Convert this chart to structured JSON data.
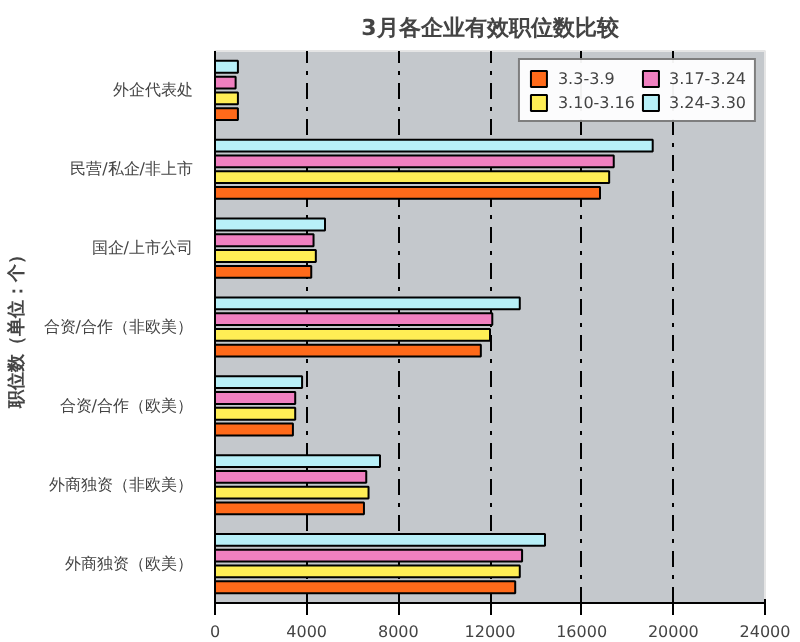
{
  "chart_data": {
    "type": "bar",
    "orientation": "horizontal",
    "title": "3月各企业有效职位数比较",
    "ylabel": "职位数（单位：个）",
    "categories": [
      "外企代表处",
      "民营/私企/非上市",
      "国企/上市公司",
      "合资/合作（非欧美）",
      "合资/合作（欧美）",
      "外商独资（非欧美）",
      "外商独资（欧美）"
    ],
    "series": [
      {
        "name": "3.3-3.9",
        "color": "#ff6a1a",
        "values": [
          1000,
          16800,
          4200,
          11600,
          3400,
          6500,
          13100
        ]
      },
      {
        "name": "3.10-3.16",
        "color": "#ffee55",
        "values": [
          1000,
          17200,
          4400,
          12000,
          3500,
          6700,
          13300
        ]
      },
      {
        "name": "3.17-3.24",
        "color": "#f080c0",
        "values": [
          900,
          17400,
          4300,
          12100,
          3500,
          6600,
          13400
        ]
      },
      {
        "name": "3.24-3.30",
        "color": "#b8f0f8",
        "values": [
          1000,
          19100,
          4800,
          13300,
          3800,
          7200,
          14400
        ]
      }
    ],
    "xlim": [
      0,
      24000
    ],
    "xticks": [
      0,
      4000,
      8000,
      12000,
      16000,
      20000,
      24000
    ],
    "grid": "x",
    "legend": "top right"
  }
}
